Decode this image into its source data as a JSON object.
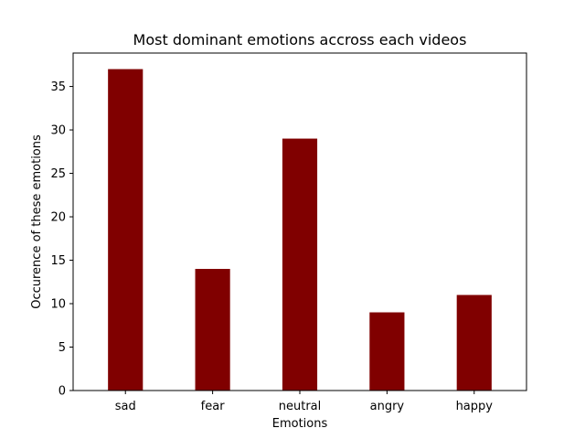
{
  "chart_data": {
    "type": "bar",
    "title": "Most dominant emotions accross each videos",
    "xlabel": "Emotions",
    "ylabel": "Occurence of these emotions",
    "categories": [
      "sad",
      "fear",
      "neutral",
      "angry",
      "happy"
    ],
    "values": [
      37,
      14,
      29,
      9,
      11
    ],
    "ylim": [
      0,
      38.85
    ],
    "yticks": [
      0,
      5,
      10,
      15,
      20,
      25,
      30,
      35
    ],
    "grid": false,
    "bar_color": "#800000"
  }
}
